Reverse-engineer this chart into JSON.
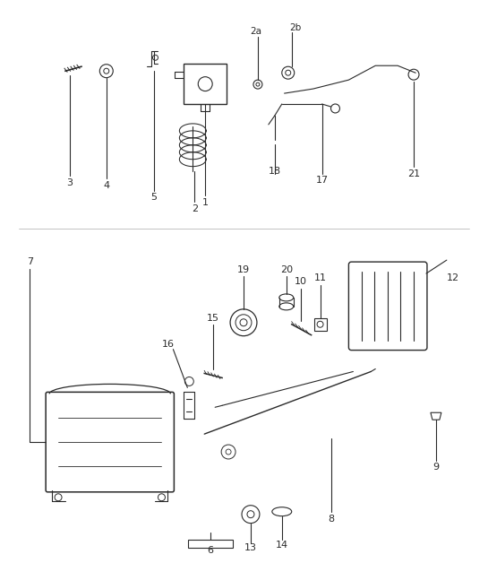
{
  "bg_color": "#ffffff",
  "line_color": "#2a2a2a",
  "figsize": [
    5.45,
    6.28
  ],
  "dpi": 100
}
